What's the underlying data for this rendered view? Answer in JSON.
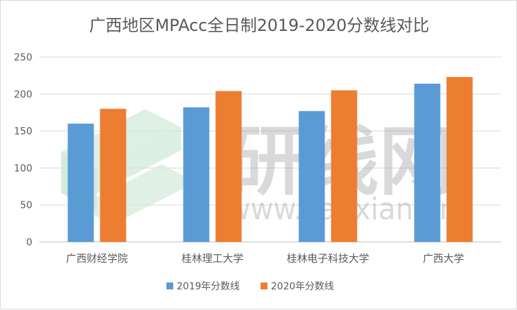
{
  "chart_data": {
    "type": "bar",
    "title": "广西地区MPAcc全日制2019-2020分数线对比",
    "categories": [
      "广西财经学院",
      "桂林理工大学",
      "桂林电子科技大学",
      "广西大学"
    ],
    "series": [
      {
        "name": "2019年分数线",
        "values": [
          160,
          182,
          177,
          214
        ],
        "color": "#5b9bd5"
      },
      {
        "name": "2020年分数线",
        "values": [
          180,
          204,
          205,
          223
        ],
        "color": "#ed7d31"
      }
    ],
    "ylim": [
      0,
      250
    ],
    "yticks": [
      0,
      50,
      100,
      150,
      200,
      250
    ],
    "grid": true,
    "legend_position": "bottom"
  },
  "watermark": {
    "logo": "研线网",
    "url": "www.yanxian.org",
    "colors": [
      "#d3ead9",
      "#c6e3cf"
    ]
  }
}
